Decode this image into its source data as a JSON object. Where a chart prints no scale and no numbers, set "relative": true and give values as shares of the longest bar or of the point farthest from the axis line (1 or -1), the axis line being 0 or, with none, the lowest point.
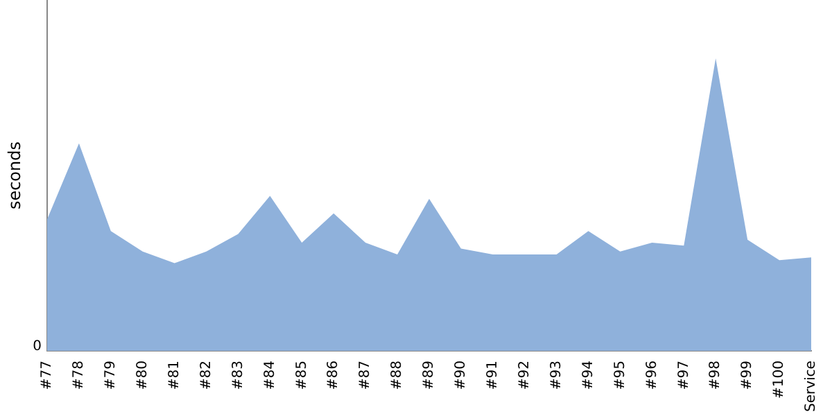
{
  "chart_data": {
    "type": "area",
    "ylabel": "seconds",
    "relative": true,
    "annotations": [
      "0"
    ],
    "categories": [
      "#77",
      "#78",
      "#79",
      "#80",
      "#81",
      "#82",
      "#83",
      "#84",
      "#85",
      "#86",
      "#87",
      "#88",
      "#89",
      "#90",
      "#91",
      "#92",
      "#93",
      "#94",
      "#95",
      "#96",
      "#97",
      "#98",
      "#99",
      "#100",
      "Service"
    ],
    "series": [
      {
        "color": "#8fb1db",
        "values": [
          0.45,
          0.71,
          0.41,
          0.34,
          0.3,
          0.34,
          0.4,
          0.53,
          0.37,
          0.47,
          0.37,
          0.33,
          0.52,
          0.35,
          0.33,
          0.33,
          0.33,
          0.41,
          0.34,
          0.37,
          0.36,
          1,
          0.38,
          0.31,
          0.32
        ]
      }
    ],
    "grid": false,
    "legend": false,
    "marker": "none"
  }
}
